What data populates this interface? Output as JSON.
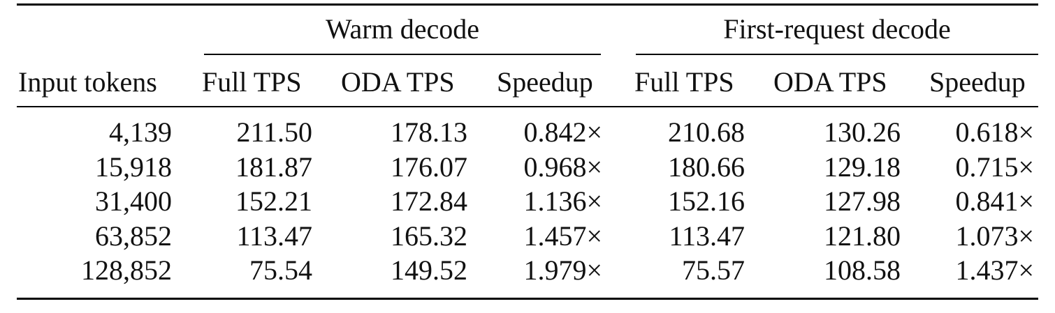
{
  "table": {
    "group_headers": {
      "warm": "Warm decode",
      "first": "First-request decode"
    },
    "column_headers": {
      "input_tokens": "Input tokens",
      "warm_full_tps": "Full TPS",
      "warm_oda_tps": "ODA TPS",
      "warm_speedup": "Speedup",
      "first_full_tps": "Full TPS",
      "first_oda_tps": "ODA TPS",
      "first_speedup": "Speedup"
    },
    "rows": [
      {
        "input_tokens": "4,139",
        "warm_full": "211.50",
        "warm_oda": "178.13",
        "warm_speedup": "0.842×",
        "first_full": "210.68",
        "first_oda": "130.26",
        "first_speedup": "0.618×"
      },
      {
        "input_tokens": "15,918",
        "warm_full": "181.87",
        "warm_oda": "176.07",
        "warm_speedup": "0.968×",
        "first_full": "180.66",
        "first_oda": "129.18",
        "first_speedup": "0.715×"
      },
      {
        "input_tokens": "31,400",
        "warm_full": "152.21",
        "warm_oda": "172.84",
        "warm_speedup": "1.136×",
        "first_full": "152.16",
        "first_oda": "127.98",
        "first_speedup": "0.841×"
      },
      {
        "input_tokens": "63,852",
        "warm_full": "113.47",
        "warm_oda": "165.32",
        "warm_speedup": "1.457×",
        "first_full": "113.47",
        "first_oda": "121.80",
        "first_speedup": "1.073×"
      },
      {
        "input_tokens": "128,852",
        "warm_full": "75.54",
        "warm_oda": "149.52",
        "warm_speedup": "1.979×",
        "first_full": "75.57",
        "first_oda": "108.58",
        "first_speedup": "1.437×"
      }
    ]
  }
}
